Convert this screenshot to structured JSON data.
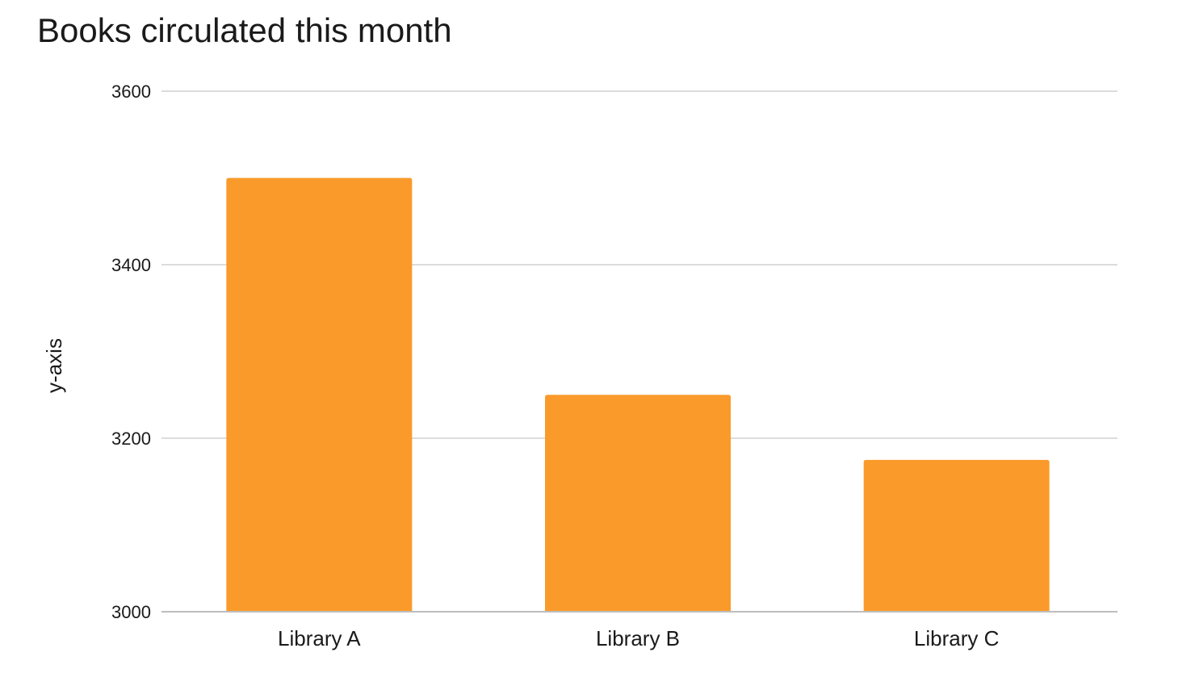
{
  "chart_data": {
    "type": "bar",
    "title": "Books circulated this month",
    "xlabel": "",
    "ylabel": "y-axis",
    "categories": [
      "Library A",
      "Library B",
      "Library C"
    ],
    "values": [
      3500,
      3250,
      3175
    ],
    "ylim": [
      3000,
      3600
    ],
    "yticks": [
      3000,
      3200,
      3400,
      3600
    ],
    "ytick_labels": [
      "3000",
      "3200",
      "3400",
      "3600"
    ],
    "grid": true,
    "legend": "none",
    "colors": {
      "bar": "#fa9a2a",
      "grid": "#d0d0d0",
      "axis": "#bdbdbd",
      "text": "#1a1a1a"
    }
  }
}
